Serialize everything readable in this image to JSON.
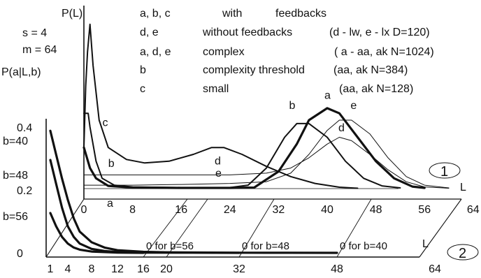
{
  "chart_data": {
    "type": "line",
    "title": "",
    "params": {
      "s": "s = 4",
      "m": "m = 64"
    },
    "y_label_top": "P(L)",
    "y_label_bottom": "P(a|L,b)",
    "legend": [
      {
        "key": "a, b, c",
        "text": "with",
        "text2": "feedbacks",
        "extra": ""
      },
      {
        "key": "d, e",
        "text": "without feedbacks",
        "text2": "",
        "extra": "(d - lw,   e - lx   D=120)"
      },
      {
        "key": "a, d, e",
        "text": "complex",
        "text2": "",
        "extra": "( a - aa, ak  N=1024)"
      },
      {
        "key": "b",
        "text": "complexity threshold",
        "text2": "",
        "extra": "(aa, ak  N=384)"
      },
      {
        "key": "c",
        "text": "small",
        "text2": "",
        "extra": "(aa, ak  N=128)"
      }
    ],
    "back_panel": {
      "marker": "1",
      "axis_label": "L",
      "x_ticks": [
        "0",
        "8",
        "16",
        "24",
        "32",
        "40",
        "48",
        "56",
        "64"
      ],
      "x_tick_values": [
        0,
        8,
        16,
        24,
        32,
        40,
        48,
        56,
        64
      ],
      "series": [
        {
          "name": "a",
          "width": 3.2,
          "label_at": [
            40,
            0.25
          ],
          "points": [
            [
              0,
              0.12
            ],
            [
              1,
              0.06
            ],
            [
              2,
              0.03
            ],
            [
              4,
              0.008
            ],
            [
              8,
              0.003
            ],
            [
              16,
              0.002
            ],
            [
              24,
              0.002
            ],
            [
              28,
              0.003
            ],
            [
              32,
              0.05
            ],
            [
              35,
              0.13
            ],
            [
              37,
              0.2
            ],
            [
              40,
              0.235
            ],
            [
              42,
              0.22
            ],
            [
              45,
              0.15
            ],
            [
              48,
              0.08
            ],
            [
              51,
              0.03
            ],
            [
              54,
              0.006
            ],
            [
              56,
              0.002
            ]
          ]
        },
        {
          "name": "b",
          "width": 2.0,
          "label_at": [
            34.2,
            0.22
          ],
          "points": [
            [
              0,
              0.22
            ],
            [
              0.7,
              0.22
            ],
            [
              1,
              0.18
            ],
            [
              2,
              0.08
            ],
            [
              3,
              0.03
            ],
            [
              5,
              0.01
            ],
            [
              8,
              0.005
            ],
            [
              16,
              0.003
            ],
            [
              24,
              0.003
            ],
            [
              27,
              0.01
            ],
            [
              30,
              0.06
            ],
            [
              33,
              0.15
            ],
            [
              35,
              0.19
            ],
            [
              37,
              0.19
            ],
            [
              40,
              0.15
            ],
            [
              43,
              0.08
            ],
            [
              46,
              0.03
            ],
            [
              49,
              0.008
            ],
            [
              52,
              0.002
            ]
          ]
        },
        {
          "name": "c",
          "width": 2.0,
          "label_at": [
            3.5,
            0.17
          ],
          "points": [
            [
              0,
              0.12
            ],
            [
              0.3,
              0.3
            ],
            [
              0.6,
              0.4
            ],
            [
              1,
              0.48
            ],
            [
              1.5,
              0.36
            ],
            [
              2.5,
              0.2
            ],
            [
              4,
              0.12
            ],
            [
              7,
              0.085
            ],
            [
              10,
              0.075
            ],
            [
              14,
              0.08
            ],
            [
              18,
              0.1
            ],
            [
              21,
              0.12
            ],
            [
              23,
              0.12
            ],
            [
              26,
              0.1
            ],
            [
              30,
              0.065
            ],
            [
              34,
              0.035
            ],
            [
              38,
              0.015
            ],
            [
              42,
              0.004
            ],
            [
              45,
              0.001
            ]
          ]
        },
        {
          "name": "d",
          "width": 1.0,
          "label_at": [
            42.3,
            0.155
          ],
          "points": [
            [
              0,
              0.04
            ],
            [
              8,
              0.04
            ],
            [
              16,
              0.04
            ],
            [
              24,
              0.04
            ],
            [
              30,
              0.045
            ],
            [
              34,
              0.06
            ],
            [
              37,
              0.09
            ],
            [
              40,
              0.13
            ],
            [
              42,
              0.15
            ],
            [
              44,
              0.14
            ],
            [
              47,
              0.1
            ],
            [
              50,
              0.055
            ],
            [
              53,
              0.02
            ],
            [
              56,
              0.005
            ],
            [
              60,
              0.001
            ]
          ]
        },
        {
          "name": "e",
          "width": 1.0,
          "label_at": [
            44.3,
            0.22
          ],
          "points": [
            [
              0,
              0.01
            ],
            [
              8,
              0.01
            ],
            [
              16,
              0.012
            ],
            [
              24,
              0.015
            ],
            [
              30,
              0.02
            ],
            [
              34,
              0.045
            ],
            [
              37,
              0.1
            ],
            [
              40,
              0.17
            ],
            [
              42,
              0.2
            ],
            [
              44,
              0.2
            ],
            [
              47,
              0.16
            ],
            [
              50,
              0.09
            ],
            [
              53,
              0.035
            ],
            [
              56,
              0.01
            ],
            [
              60,
              0.002
            ]
          ]
        }
      ],
      "labels_ext": [
        {
          "name": "d",
          "at": [
            21.5,
            0.07
          ]
        },
        {
          "name": "e",
          "at": [
            20,
            0.035
          ]
        },
        {
          "name": "b",
          "at": [
            4,
            0.063
          ]
        },
        {
          "name": "a",
          "at": [
            3.8,
            0.0
          ]
        }
      ]
    },
    "front_panel": {
      "marker": "2",
      "axis_label": "L",
      "x_ticks": [
        "1",
        "4",
        "8",
        "12",
        "16",
        "20",
        "32",
        "48",
        "64"
      ],
      "x_tick_values": [
        1,
        4,
        8,
        12,
        16,
        20,
        32,
        48,
        64
      ],
      "y_ticks": [
        "0",
        "0.2",
        "0.4"
      ],
      "y_tick_values": [
        0,
        0.2,
        0.4
      ],
      "zero_labels": [
        {
          "text": "0 for b=56",
          "at": 16
        },
        {
          "text": "0 for b=48",
          "at": 32
        },
        {
          "text": "0 for b=40",
          "at": 48
        }
      ],
      "series": [
        {
          "name": "b=40",
          "label": "b=40",
          "points": [
            [
              1,
              0.46
            ],
            [
              2,
              0.37
            ],
            [
              3,
              0.28
            ],
            [
              4,
              0.2
            ],
            [
              5,
              0.13
            ],
            [
              6,
              0.08
            ],
            [
              8,
              0.04
            ],
            [
              10,
              0.02
            ],
            [
              12,
              0.01
            ],
            [
              16,
              0.004
            ],
            [
              20,
              0.002
            ],
            [
              32,
              0.0006
            ],
            [
              40,
              0.0003
            ],
            [
              48,
              0
            ]
          ]
        },
        {
          "name": "b=48",
          "label": "b=48",
          "points": [
            [
              1,
              0.35
            ],
            [
              2,
              0.26
            ],
            [
              3,
              0.17
            ],
            [
              4,
              0.1
            ],
            [
              5,
              0.06
            ],
            [
              6,
              0.035
            ],
            [
              8,
              0.015
            ],
            [
              10,
              0.007
            ],
            [
              12,
              0.003
            ],
            [
              16,
              0.001
            ],
            [
              24,
              0.0004
            ],
            [
              32,
              0
            ]
          ]
        },
        {
          "name": "b=56",
          "label": "b=56",
          "points": [
            [
              1,
              0.15
            ],
            [
              2,
              0.1
            ],
            [
              3,
              0.06
            ],
            [
              4,
              0.035
            ],
            [
              5,
              0.02
            ],
            [
              6,
              0.012
            ],
            [
              8,
              0.005
            ],
            [
              12,
              0.001
            ],
            [
              16,
              0
            ]
          ]
        }
      ]
    }
  }
}
